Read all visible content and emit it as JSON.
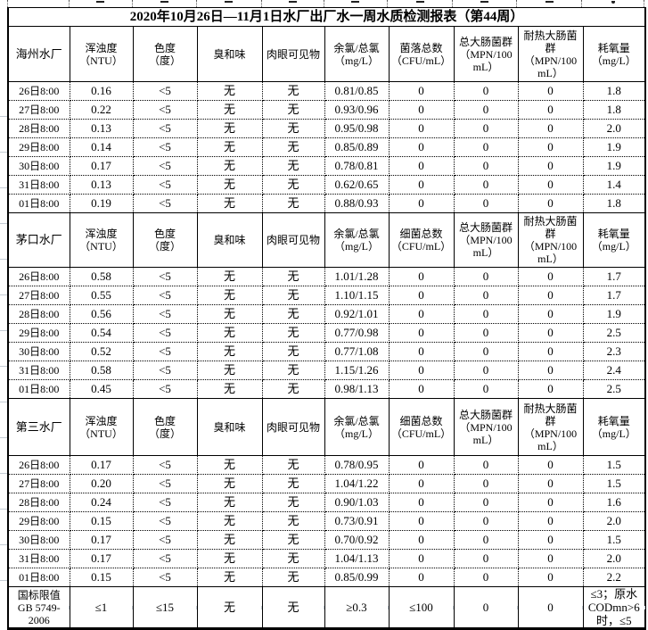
{
  "title": "2020年10月26日—11月1日水厂出厂水一周水质检测报表（第44周）",
  "sections": [
    {
      "plant": "海州水厂",
      "headers": [
        "浑浊度\n（NTU）",
        "色度\n（度）",
        "臭和味",
        "肉眼可见物",
        "余氯/总氯\n（mg/L）",
        "菌落总数\n（CFU/mL）",
        "总大肠菌群\n（MPN/100\nmL）",
        "耐热大肠菌\n群\n（MPN/100\nmL）",
        "耗氧量\n（mg/L）"
      ],
      "rows": [
        {
          "time": "26日8:00",
          "values": [
            "0.16",
            "<5",
            "无",
            "无",
            "0.81/0.85",
            "0",
            "0",
            "0",
            "1.8"
          ]
        },
        {
          "time": "27日8:00",
          "values": [
            "0.22",
            "<5",
            "无",
            "无",
            "0.93/0.96",
            "0",
            "0",
            "0",
            "1.8"
          ]
        },
        {
          "time": "28日8:00",
          "values": [
            "0.13",
            "<5",
            "无",
            "无",
            "0.95/0.98",
            "0",
            "0",
            "0",
            "2.0"
          ]
        },
        {
          "time": "29日8:00",
          "values": [
            "0.14",
            "<5",
            "无",
            "无",
            "0.85/0.89",
            "0",
            "0",
            "0",
            "1.9"
          ]
        },
        {
          "time": "30日8:00",
          "values": [
            "0.17",
            "<5",
            "无",
            "无",
            "0.78/0.81",
            "0",
            "0",
            "0",
            "1.9"
          ]
        },
        {
          "time": "31日8:00",
          "values": [
            "0.13",
            "<5",
            "无",
            "无",
            "0.62/0.65",
            "0",
            "0",
            "0",
            "1.4"
          ]
        },
        {
          "time": "01日8:00",
          "values": [
            "0.19",
            "<5",
            "无",
            "无",
            "0.88/0.93",
            "0",
            "0",
            "0",
            "1.8"
          ]
        }
      ]
    },
    {
      "plant": "茅口水厂",
      "headers": [
        "浑浊度\n（NTU）",
        "色度\n（度）",
        "臭和味",
        "肉眼可见物",
        "余氯/总氯\n（mg/L）",
        "细菌总数\n（CFU/mL）",
        "总大肠菌群\n（MPN/100\nmL）",
        "耐热大肠菌\n群\n（MPN/100\nmL）",
        "耗氧量\n（mg/L）"
      ],
      "rows": [
        {
          "time": "26日8:00",
          "values": [
            "0.58",
            "<5",
            "无",
            "无",
            "1.01/1.28",
            "0",
            "0",
            "0",
            "1.7"
          ]
        },
        {
          "time": "27日8:00",
          "values": [
            "0.55",
            "<5",
            "无",
            "无",
            "1.10/1.15",
            "0",
            "0",
            "0",
            "1.7"
          ]
        },
        {
          "time": "28日8:00",
          "values": [
            "0.56",
            "<5",
            "无",
            "无",
            "0.92/1.01",
            "0",
            "0",
            "0",
            "1.9"
          ]
        },
        {
          "time": "29日8:00",
          "values": [
            "0.54",
            "<5",
            "无",
            "无",
            "0.77/0.98",
            "0",
            "0",
            "0",
            "2.5"
          ]
        },
        {
          "time": "30日8:00",
          "values": [
            "0.52",
            "<5",
            "无",
            "无",
            "0.77/1.08",
            "0",
            "0",
            "0",
            "2.3"
          ]
        },
        {
          "time": "31日8:00",
          "values": [
            "0.58",
            "<5",
            "无",
            "无",
            "1.15/1.26",
            "0",
            "0",
            "0",
            "2.4"
          ]
        },
        {
          "time": "01日8:00",
          "values": [
            "0.45",
            "<5",
            "无",
            "无",
            "0.98/1.13",
            "0",
            "0",
            "0",
            "2.5"
          ]
        }
      ]
    },
    {
      "plant": "第三水厂",
      "headers": [
        "浑浊度\n（NTU）",
        "色度\n（度）",
        "臭和味",
        "肉眼可见物",
        "余氯/总氯\n（mg/L）",
        "细菌总数\n（CFU/mL）",
        "总大肠菌群\n（MPN/100\nmL）",
        "耐热大肠菌\n群\n（MPN/100\nmL）",
        "耗氧量\n（mg/L）"
      ],
      "rows": [
        {
          "time": "26日8:00",
          "values": [
            "0.17",
            "<5",
            "无",
            "无",
            "0.78/0.95",
            "0",
            "0",
            "0",
            "1.5"
          ]
        },
        {
          "time": "27日8:00",
          "values": [
            "0.20",
            "<5",
            "无",
            "无",
            "1.04/1.22",
            "0",
            "0",
            "0",
            "1.5"
          ]
        },
        {
          "time": "28日8:00",
          "values": [
            "0.24",
            "<5",
            "无",
            "无",
            "0.90/1.03",
            "0",
            "0",
            "0",
            "1.6"
          ]
        },
        {
          "time": "29日8:00",
          "values": [
            "0.15",
            "<5",
            "无",
            "无",
            "0.73/0.91",
            "0",
            "0",
            "0",
            "2.0"
          ]
        },
        {
          "time": "30日8:00",
          "values": [
            "0.17",
            "<5",
            "无",
            "无",
            "0.70/0.92",
            "0",
            "0",
            "0",
            "1.5"
          ]
        },
        {
          "time": "31日8:00",
          "values": [
            "0.17",
            "<5",
            "无",
            "无",
            "1.04/1.13",
            "0",
            "0",
            "0",
            "2.0"
          ]
        },
        {
          "time": "01日8:00",
          "values": [
            "0.15",
            "<5",
            "无",
            "无",
            "0.85/0.99",
            "0",
            "0",
            "0",
            "2.2"
          ]
        }
      ]
    }
  ],
  "standard": {
    "label": "国标限值\nGB 5749-\n2006",
    "values": [
      "≤1",
      "≤15",
      "无",
      "无",
      "≥0.3",
      "≤100",
      "0",
      "0",
      "≤3；原水\nCODmn>6\n时，≤5"
    ]
  }
}
